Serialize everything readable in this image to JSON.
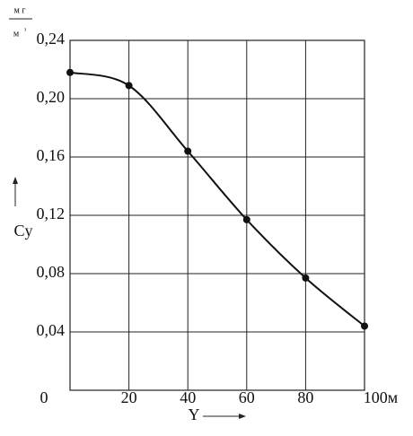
{
  "chart_data": {
    "type": "line",
    "y_label": "Cy",
    "y_unit": {
      "numerator": "м г",
      "denominator": "м",
      "exponent": "з"
    },
    "x_label": "Y",
    "x": [
      0,
      20,
      40,
      60,
      80,
      100
    ],
    "series": [
      {
        "color": "#111111",
        "values": [
          0.218,
          0.209,
          0.164,
          0.117,
          0.077,
          0.044
        ]
      }
    ],
    "xlim": [
      0,
      100
    ],
    "xticks": [
      0,
      20,
      40,
      60,
      80,
      {
        "value": 100,
        "label": "100м"
      }
    ],
    "ylim": [
      0,
      0.24
    ],
    "yticks": [
      {
        "value": 0.04,
        "label": "0,04"
      },
      {
        "value": 0.08,
        "label": "0,08"
      },
      {
        "value": 0.12,
        "label": "0,12"
      },
      {
        "value": 0.16,
        "label": "0,16"
      },
      {
        "value": 0.2,
        "label": "0,20"
      },
      {
        "value": 0.24,
        "label": "0,24"
      }
    ],
    "grid": true
  }
}
